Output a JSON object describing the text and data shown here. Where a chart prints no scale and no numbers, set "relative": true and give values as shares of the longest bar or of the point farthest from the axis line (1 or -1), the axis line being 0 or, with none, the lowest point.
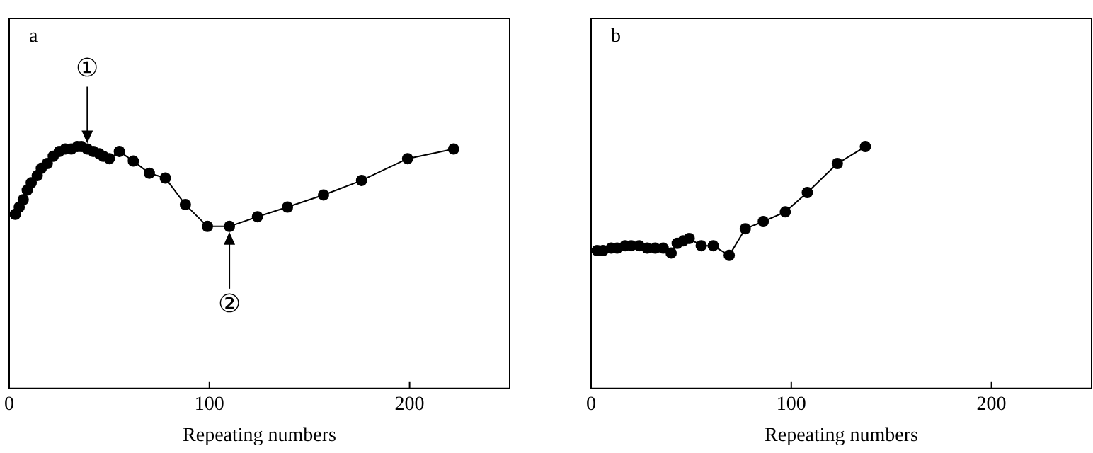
{
  "chart_data": [
    {
      "type": "line",
      "title": "a",
      "xlabel": "Repeating numbers",
      "relative": true,
      "xlim": [
        0,
        250
      ],
      "xticks": [
        0,
        100,
        200
      ],
      "grid": false,
      "legend": false,
      "marker": "circle",
      "line_style": "solid",
      "tick_labels": "x",
      "annotations": [
        {
          "text": "①",
          "x": 39,
          "y": 0.99
        },
        {
          "text": "②",
          "x": 110,
          "y": 0.67
        }
      ],
      "series": [
        {
          "color": "#000000",
          "x": [
            3,
            5,
            7,
            9,
            11,
            14,
            16,
            19,
            22,
            25,
            28,
            31,
            34,
            36,
            39,
            42,
            45,
            47,
            50,
            55,
            62,
            70,
            78,
            88,
            99,
            110,
            124,
            139,
            157,
            176,
            199,
            222
          ],
          "values": [
            0.72,
            0.75,
            0.78,
            0.82,
            0.85,
            0.88,
            0.91,
            0.93,
            0.96,
            0.98,
            0.99,
            0.99,
            1.0,
            1.0,
            0.99,
            0.98,
            0.97,
            0.96,
            0.95,
            0.98,
            0.94,
            0.89,
            0.87,
            0.76,
            0.67,
            0.67,
            0.71,
            0.75,
            0.8,
            0.86,
            0.95,
            0.99
          ]
        }
      ]
    },
    {
      "type": "line",
      "title": "b",
      "xlabel": "Repeating numbers",
      "relative": true,
      "xlim": [
        0,
        250
      ],
      "xticks": [
        0,
        100,
        200
      ],
      "grid": false,
      "legend": false,
      "marker": "circle",
      "line_style": "solid",
      "tick_labels": "x",
      "series": [
        {
          "color": "#000000",
          "x": [
            3,
            6,
            10,
            13,
            17,
            20,
            24,
            28,
            32,
            36,
            40,
            43,
            46,
            49,
            55,
            61,
            69,
            77,
            86,
            97,
            108,
            123,
            137
          ],
          "values": [
            0.57,
            0.57,
            0.58,
            0.58,
            0.59,
            0.59,
            0.59,
            0.58,
            0.58,
            0.58,
            0.56,
            0.6,
            0.61,
            0.62,
            0.59,
            0.59,
            0.55,
            0.66,
            0.69,
            0.73,
            0.81,
            0.93,
            1.0
          ]
        }
      ]
    }
  ]
}
